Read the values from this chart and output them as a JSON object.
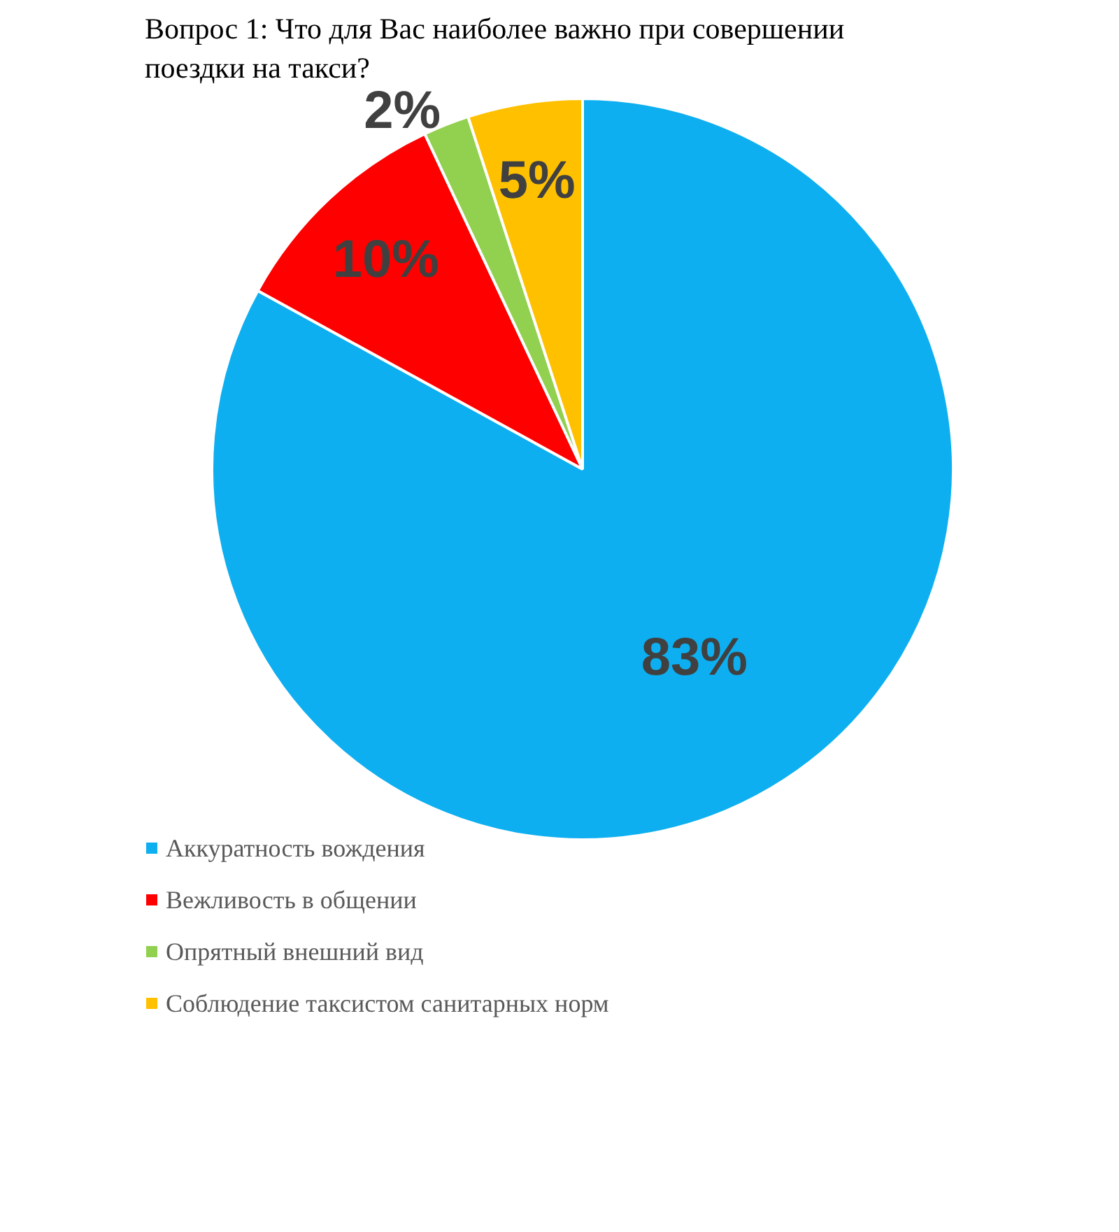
{
  "chart_data": {
    "type": "pie",
    "title": "Вопрос 1: Что для Вас наиболее важно при совершении поездки на такси?",
    "categories": [
      "Аккуратность вождения",
      "Вежливость в общении",
      "Опрятный внешний вид",
      "Соблюдение таксистом санитарных норм"
    ],
    "values": [
      83,
      10,
      2,
      5
    ],
    "colors": [
      "#0eaff0",
      "#ff0000",
      "#92d050",
      "#ffc000"
    ],
    "value_labels": [
      "83%",
      "10%",
      "2%",
      "5%"
    ],
    "legend": "bottom left"
  }
}
